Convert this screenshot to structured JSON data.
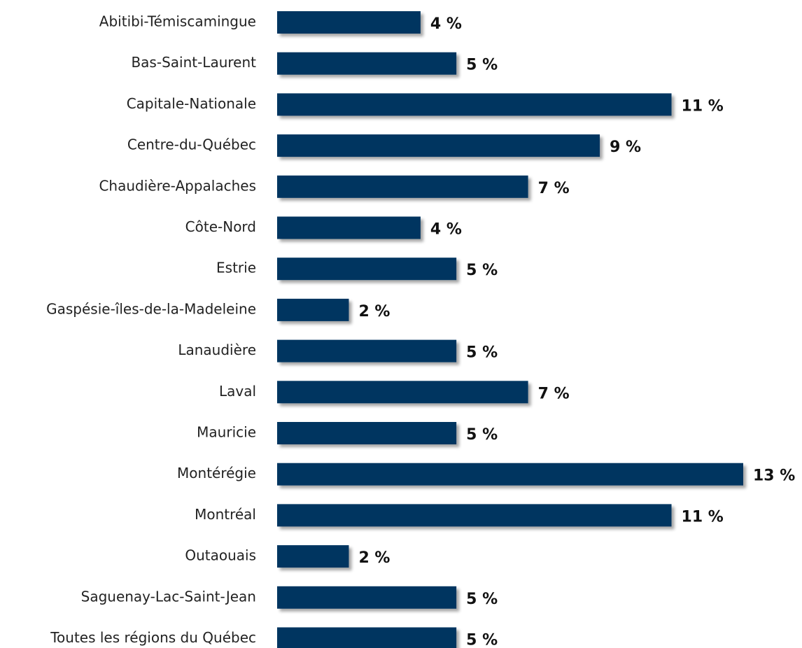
{
  "chart_data": {
    "type": "bar",
    "orientation": "horizontal",
    "categories": [
      "Abitibi-Témiscamingue",
      "Bas-Saint-Laurent",
      "Capitale-Nationale",
      "Centre-du-Québec",
      "Chaudière-Appalaches",
      "Côte-Nord",
      "Estrie",
      "Gaspésie-îles-de-la-Madeleine",
      "Lanaudière",
      "Laval",
      "Mauricie",
      "Montérégie",
      "Montréal",
      "Outaouais",
      "Saguenay-Lac-Saint-Jean",
      "Toutes les régions du Québec"
    ],
    "values": [
      4,
      5,
      11,
      9,
      7,
      4,
      5,
      2,
      5,
      7,
      5,
      13,
      11,
      2,
      5,
      5
    ],
    "value_labels": [
      "4 %",
      "5 %",
      "11 %",
      "9 %",
      "7 %",
      "4 %",
      "5 %",
      "2 %",
      "5 %",
      "7 %",
      "5 %",
      "13 %",
      "11 %",
      "2 %",
      "5 %",
      "5 %"
    ],
    "color": "#003561"
  }
}
